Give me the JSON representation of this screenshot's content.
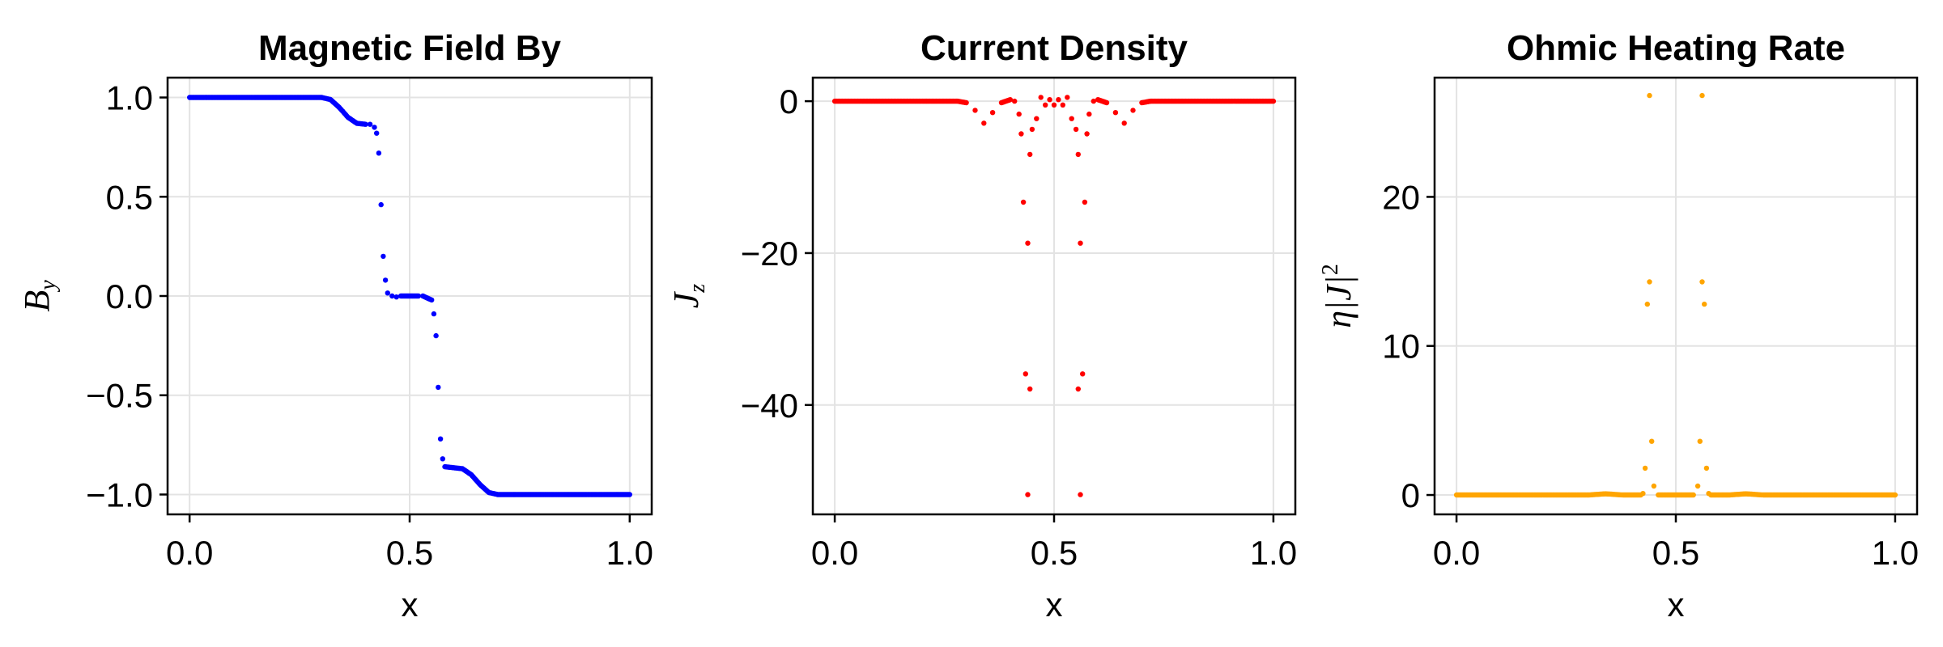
{
  "chart_data": [
    {
      "type": "scatter",
      "title": "Magnetic Field By",
      "xlabel": "x",
      "ylabel": "B_y",
      "color": "#0000ff",
      "xlim": [
        -0.05,
        1.05
      ],
      "ylim": [
        -1.1,
        1.1
      ],
      "xticks": [
        0.0,
        0.5,
        1.0
      ],
      "xtick_labels": [
        "0.0",
        "0.5",
        "1.0"
      ],
      "yticks": [
        1.0,
        0.5,
        0.0,
        -0.5,
        -1.0
      ],
      "ytick_labels": [
        "1.0",
        "0.5",
        "0.0",
        "−0.5",
        "−1.0"
      ],
      "grid": true,
      "points": [
        [
          0.0,
          1.0
        ],
        [
          0.05,
          1.0
        ],
        [
          0.1,
          1.0
        ],
        [
          0.15,
          1.0
        ],
        [
          0.2,
          1.0
        ],
        [
          0.25,
          1.0
        ],
        [
          0.3,
          1.0
        ],
        [
          0.32,
          0.99
        ],
        [
          0.34,
          0.95
        ],
        [
          0.36,
          0.9
        ],
        [
          0.38,
          0.87
        ],
        [
          0.4,
          0.865
        ],
        [
          0.41,
          0.865
        ],
        [
          0.42,
          0.85
        ],
        [
          0.425,
          0.82
        ],
        [
          0.43,
          0.72
        ],
        [
          0.435,
          0.46
        ],
        [
          0.44,
          0.2
        ],
        [
          0.445,
          0.08
        ],
        [
          0.45,
          0.015
        ],
        [
          0.46,
          0.0
        ],
        [
          0.47,
          -0.005
        ],
        [
          0.48,
          0.0
        ],
        [
          0.5,
          0.0
        ],
        [
          0.52,
          0.0
        ],
        [
          0.53,
          0.0
        ],
        [
          0.55,
          -0.02
        ],
        [
          0.555,
          -0.09
        ],
        [
          0.56,
          -0.2
        ],
        [
          0.565,
          -0.46
        ],
        [
          0.57,
          -0.72
        ],
        [
          0.575,
          -0.82
        ],
        [
          0.58,
          -0.86
        ],
        [
          0.6,
          -0.865
        ],
        [
          0.62,
          -0.87
        ],
        [
          0.64,
          -0.9
        ],
        [
          0.66,
          -0.95
        ],
        [
          0.68,
          -0.99
        ],
        [
          0.7,
          -1.0
        ],
        [
          0.75,
          -1.0
        ],
        [
          0.8,
          -1.0
        ],
        [
          0.85,
          -1.0
        ],
        [
          0.9,
          -1.0
        ],
        [
          0.95,
          -1.0
        ],
        [
          1.0,
          -1.0
        ]
      ]
    },
    {
      "type": "scatter",
      "title": "Current Density",
      "xlabel": "x",
      "ylabel": "J_z",
      "color": "#ff0000",
      "xlim": [
        -0.05,
        1.05
      ],
      "ylim": [
        -54.4,
        3.1
      ],
      "xticks": [
        0.0,
        0.5,
        1.0
      ],
      "xtick_labels": [
        "0.0",
        "0.5",
        "1.0"
      ],
      "yticks": [
        0,
        -20,
        -40
      ],
      "ytick_labels": [
        "0",
        "−20",
        "−40"
      ],
      "grid": true,
      "points": [
        [
          0.0,
          0.0
        ],
        [
          0.1,
          0.0
        ],
        [
          0.2,
          0.0
        ],
        [
          0.28,
          0.0
        ],
        [
          0.3,
          -0.2
        ],
        [
          0.32,
          -1.2
        ],
        [
          0.34,
          -2.9
        ],
        [
          0.36,
          -1.5
        ],
        [
          0.38,
          -0.2
        ],
        [
          0.4,
          0.2
        ],
        [
          0.41,
          0.0
        ],
        [
          0.42,
          -1.7
        ],
        [
          0.425,
          -4.3
        ],
        [
          0.43,
          -13.3
        ],
        [
          0.435,
          -35.9
        ],
        [
          0.44,
          -51.8
        ],
        [
          0.445,
          -37.9
        ],
        [
          0.44,
          -18.7
        ],
        [
          0.445,
          -7.0
        ],
        [
          0.45,
          -3.7
        ],
        [
          0.46,
          -2.3
        ],
        [
          0.47,
          0.5
        ],
        [
          0.48,
          -0.5
        ],
        [
          0.49,
          0.2
        ],
        [
          0.5,
          -0.5
        ],
        [
          0.51,
          0.2
        ],
        [
          0.52,
          -0.5
        ],
        [
          0.53,
          0.5
        ],
        [
          0.54,
          -2.3
        ],
        [
          0.55,
          -3.7
        ],
        [
          0.555,
          -7.0
        ],
        [
          0.56,
          -18.7
        ],
        [
          0.555,
          -37.9
        ],
        [
          0.56,
          -51.8
        ],
        [
          0.565,
          -35.9
        ],
        [
          0.57,
          -13.3
        ],
        [
          0.575,
          -4.3
        ],
        [
          0.58,
          -1.7
        ],
        [
          0.59,
          0.0
        ],
        [
          0.6,
          0.2
        ],
        [
          0.62,
          -0.2
        ],
        [
          0.64,
          -1.5
        ],
        [
          0.66,
          -2.9
        ],
        [
          0.68,
          -1.2
        ],
        [
          0.7,
          -0.2
        ],
        [
          0.72,
          0.0
        ],
        [
          0.8,
          0.0
        ],
        [
          0.9,
          0.0
        ],
        [
          1.0,
          0.0
        ]
      ]
    },
    {
      "type": "scatter",
      "title": "Ohmic Heating Rate",
      "xlabel": "x",
      "ylabel": "η|J|²",
      "color": "#ffa500",
      "xlim": [
        -0.05,
        1.05
      ],
      "ylim": [
        -1.3,
        28.0
      ],
      "xticks": [
        0.0,
        0.5,
        1.0
      ],
      "xtick_labels": [
        "0.0",
        "0.5",
        "1.0"
      ],
      "yticks": [
        0,
        10,
        20
      ],
      "ytick_labels": [
        "0",
        "10",
        "20"
      ],
      "grid": true,
      "points": [
        [
          0.0,
          0.0
        ],
        [
          0.1,
          0.0
        ],
        [
          0.2,
          0.0
        ],
        [
          0.3,
          0.0
        ],
        [
          0.34,
          0.08
        ],
        [
          0.38,
          0.0
        ],
        [
          0.42,
          0.0
        ],
        [
          0.425,
          0.1
        ],
        [
          0.43,
          1.8
        ],
        [
          0.435,
          12.8
        ],
        [
          0.44,
          26.8
        ],
        [
          0.44,
          14.3
        ],
        [
          0.445,
          3.6
        ],
        [
          0.45,
          0.6
        ],
        [
          0.46,
          0.0
        ],
        [
          0.5,
          0.0
        ],
        [
          0.54,
          0.0
        ],
        [
          0.55,
          0.6
        ],
        [
          0.555,
          3.6
        ],
        [
          0.56,
          14.3
        ],
        [
          0.56,
          26.8
        ],
        [
          0.565,
          12.8
        ],
        [
          0.57,
          1.8
        ],
        [
          0.575,
          0.1
        ],
        [
          0.58,
          0.0
        ],
        [
          0.62,
          0.0
        ],
        [
          0.66,
          0.08
        ],
        [
          0.7,
          0.0
        ],
        [
          0.8,
          0.0
        ],
        [
          0.9,
          0.0
        ],
        [
          1.0,
          0.0
        ]
      ]
    }
  ],
  "panels": {
    "p0": {
      "title": "Magnetic Field By",
      "xlabel": "x"
    },
    "p1": {
      "title": "Current Density",
      "xlabel": "x"
    },
    "p2": {
      "title": "Ohmic Heating Rate",
      "xlabel": "x"
    }
  }
}
